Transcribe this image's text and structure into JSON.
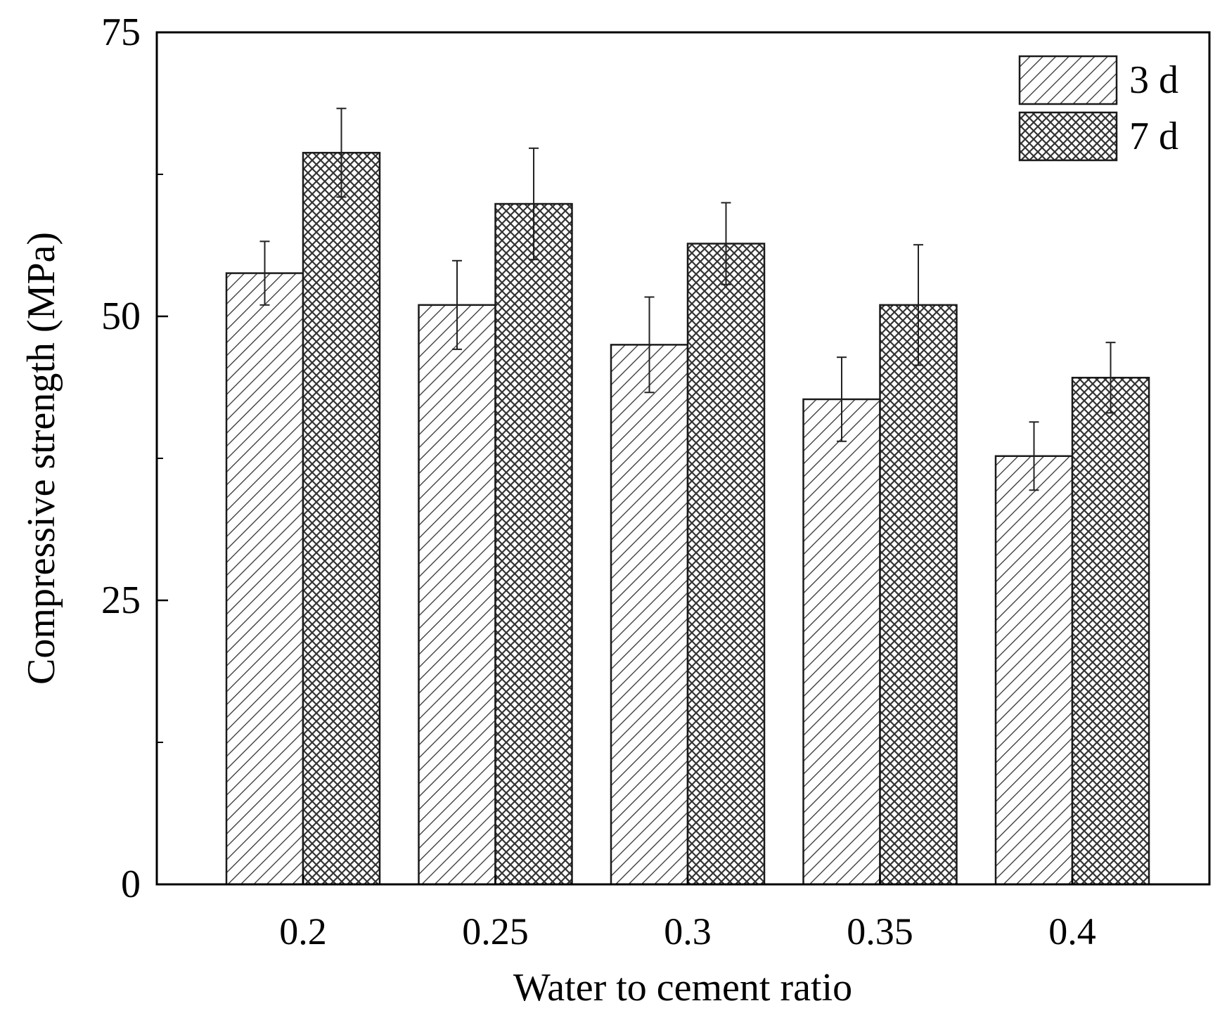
{
  "chart_data": {
    "type": "bar",
    "xlabel": "Water to cement ratio",
    "ylabel": "Compressive strength (MPa)",
    "ylim": [
      0,
      75
    ],
    "yticks": [
      0,
      25,
      50,
      75
    ],
    "categories": [
      "0.2",
      "0.25",
      "0.3",
      "0.35",
      "0.4"
    ],
    "series": [
      {
        "name": "3 d",
        "pattern": "diagonal-hatch",
        "values": [
          53.8,
          51.0,
          47.5,
          42.7,
          37.7
        ],
        "errors": [
          2.8,
          3.9,
          4.2,
          3.7,
          3.0
        ]
      },
      {
        "name": "7 d",
        "pattern": "cross-hatch",
        "values": [
          64.4,
          59.9,
          56.4,
          51.0,
          44.6
        ],
        "errors": [
          3.9,
          4.9,
          3.6,
          5.3,
          3.1
        ]
      }
    ],
    "legend_position": "top-right",
    "grid": false,
    "colors": {
      "bar_stroke": "#1a1a1a",
      "hatch": "#333333",
      "axis": "#000000"
    }
  }
}
